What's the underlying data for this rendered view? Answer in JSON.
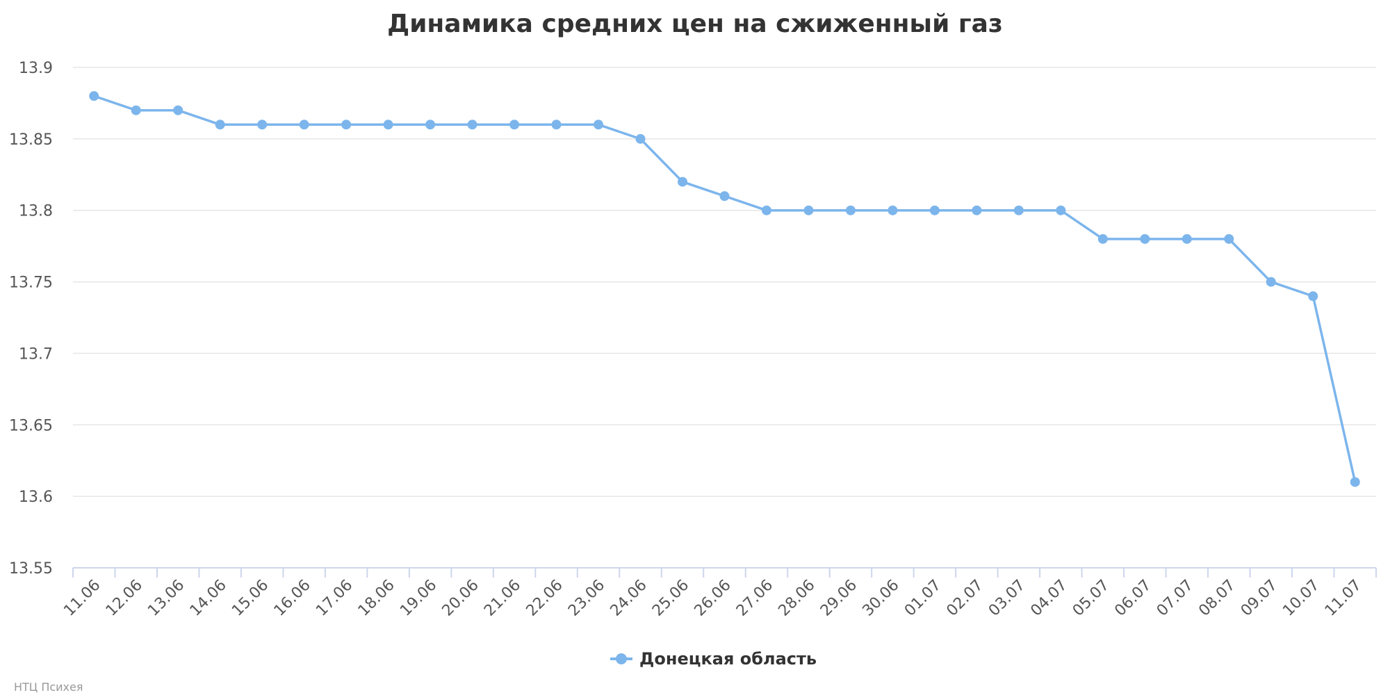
{
  "chart_data": {
    "type": "line",
    "title": "Динамика средних цен на сжиженный газ",
    "xlabel": "",
    "ylabel": "",
    "categories": [
      "11.06",
      "12.06",
      "13.06",
      "14.06",
      "15.06",
      "16.06",
      "17.06",
      "18.06",
      "19.06",
      "20.06",
      "21.06",
      "22.06",
      "23.06",
      "24.06",
      "25.06",
      "26.06",
      "27.06",
      "28.06",
      "29.06",
      "30.06",
      "01.07",
      "02.07",
      "03.07",
      "04.07",
      "05.07",
      "06.07",
      "07.07",
      "08.07",
      "09.07",
      "10.07",
      "11.07"
    ],
    "series": [
      {
        "name": "Донецкая область",
        "color": "#7cb5ec",
        "values": [
          13.88,
          13.87,
          13.87,
          13.86,
          13.86,
          13.86,
          13.86,
          13.86,
          13.86,
          13.86,
          13.86,
          13.86,
          13.86,
          13.85,
          13.82,
          13.81,
          13.8,
          13.8,
          13.8,
          13.8,
          13.8,
          13.8,
          13.8,
          13.8,
          13.78,
          13.78,
          13.78,
          13.78,
          13.75,
          13.74,
          13.61
        ]
      }
    ],
    "ylim": [
      13.55,
      13.9
    ],
    "yticks": [
      "13.55",
      "13.6",
      "13.65",
      "13.7",
      "13.75",
      "13.8",
      "13.85",
      "13.9"
    ],
    "grid": true,
    "legend_position": "bottom-center"
  },
  "credits": "НТЦ Психея"
}
